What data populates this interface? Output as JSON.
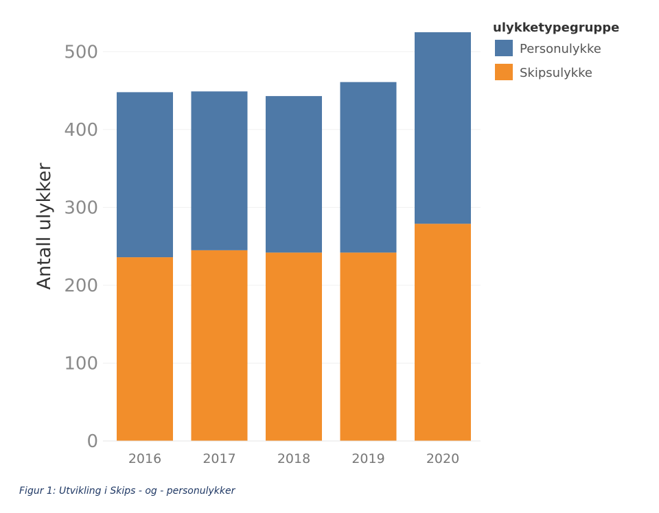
{
  "caption": "Figur 1: Utvikling i Skips - og - personulykker",
  "chart_data": {
    "type": "bar",
    "stacked": true,
    "categories": [
      "2016",
      "2017",
      "2018",
      "2019",
      "2020"
    ],
    "series": [
      {
        "name": "Skipsulykke",
        "color": "#f28e2b",
        "values": [
          236,
          245,
          242,
          242,
          279
        ]
      },
      {
        "name": "Personulykke",
        "color": "#4e79a7",
        "values": [
          212,
          204,
          201,
          219,
          246
        ]
      }
    ],
    "ylabel": "Antall ulykker",
    "xlabel": "",
    "ylim": [
      0,
      525
    ],
    "yticks": [
      0,
      100,
      200,
      300,
      400,
      500
    ],
    "grid": true,
    "legend": {
      "title": "ulykketypegruppe",
      "placement": "top-right",
      "order": [
        "Personulykke",
        "Skipsulykke"
      ]
    }
  }
}
